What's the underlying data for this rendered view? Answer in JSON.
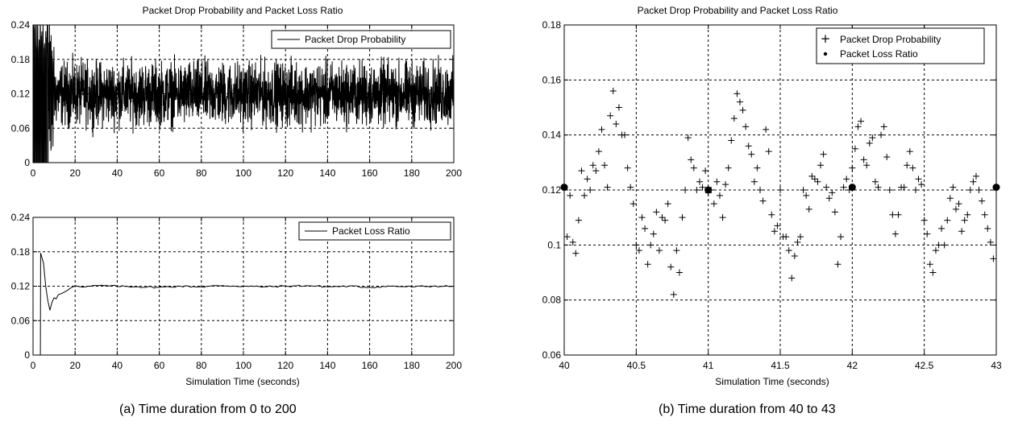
{
  "captions": {
    "a": "(a) Time duration from 0 to 200",
    "b": "(b) Time duration from 40 to 43"
  },
  "chart_data": [
    {
      "type": "line",
      "title": "Packet Drop Probability and Packet Loss Ratio",
      "xlabel": "",
      "ylabel": "",
      "xlim": [
        0,
        200
      ],
      "ylim": [
        0,
        0.24
      ],
      "grid": true,
      "xticks": [
        "0",
        "20",
        "40",
        "60",
        "80",
        "100",
        "120",
        "140",
        "160",
        "180",
        "200"
      ],
      "yticks": [
        "0",
        "0.06",
        "0.12",
        "0.18",
        "0.24"
      ],
      "legend_position": "top-right",
      "series": [
        {
          "name": "Packet Drop Probability",
          "description_values": {
            "initial_oscillation_range": [
              0,
              0.24
            ],
            "settled_mean": 0.12,
            "settled_range": [
              0.06,
              0.18
            ]
          }
        }
      ]
    },
    {
      "type": "line",
      "title": "",
      "xlabel": "Simulation Time (seconds)",
      "ylabel": "",
      "xlim": [
        0,
        200
      ],
      "ylim": [
        0,
        0.24
      ],
      "grid": true,
      "xticks": [
        "0",
        "20",
        "40",
        "60",
        "80",
        "100",
        "120",
        "140",
        "160",
        "180",
        "200"
      ],
      "yticks": [
        "0",
        "0.06",
        "0.12",
        "0.18",
        "0.24"
      ],
      "legend_position": "top-right",
      "series": [
        {
          "name": "Packet Loss Ratio",
          "x": [
            0,
            3.5,
            3.6,
            5,
            6,
            7,
            8,
            9,
            10,
            11,
            12,
            14,
            16,
            18,
            20,
            25,
            30,
            40,
            50,
            60,
            70,
            80,
            90,
            100,
            110,
            120,
            130,
            140,
            150,
            160,
            170,
            180,
            190,
            200
          ],
          "y": [
            0,
            0,
            0.178,
            0.16,
            0.12,
            0.095,
            0.078,
            0.092,
            0.1,
            0.098,
            0.105,
            0.108,
            0.112,
            0.117,
            0.121,
            0.119,
            0.121,
            0.12,
            0.119,
            0.118,
            0.12,
            0.119,
            0.121,
            0.12,
            0.119,
            0.12,
            0.121,
            0.119,
            0.12,
            0.118,
            0.12,
            0.119,
            0.12,
            0.12
          ]
        }
      ]
    },
    {
      "type": "scatter",
      "title": "Packet Drop Probability and Packet Loss Ratio",
      "xlabel": "Simulation Time (seconds)",
      "ylabel": "",
      "xlim": [
        40,
        43
      ],
      "ylim": [
        0.06,
        0.18
      ],
      "grid": true,
      "xticks": [
        "40",
        "40.5",
        "41",
        "41.5",
        "42",
        "42.5",
        "43"
      ],
      "yticks": [
        "0.06",
        "0.08",
        "0.1",
        "0.12",
        "0.14",
        "0.16",
        "0.18"
      ],
      "legend_position": "top-right",
      "series": [
        {
          "name": "Packet Drop Probability",
          "marker": "+",
          "x": [
            40.02,
            40.04,
            40.06,
            40.08,
            40.1,
            40.12,
            40.14,
            40.16,
            40.18,
            40.2,
            40.22,
            40.24,
            40.26,
            40.28,
            40.3,
            40.32,
            40.34,
            40.36,
            40.38,
            40.4,
            40.42,
            40.44,
            40.46,
            40.48,
            40.5,
            40.52,
            40.54,
            40.56,
            40.58,
            40.6,
            40.62,
            40.64,
            40.66,
            40.68,
            40.7,
            40.72,
            40.74,
            40.76,
            40.78,
            40.8,
            40.82,
            40.84,
            40.86,
            40.88,
            40.9,
            40.92,
            40.94,
            40.96,
            40.98,
            41.0,
            41.02,
            41.04,
            41.06,
            41.08,
            41.1,
            41.12,
            41.14,
            41.16,
            41.18,
            41.2,
            41.22,
            41.24,
            41.26,
            41.28,
            41.3,
            41.32,
            41.34,
            41.36,
            41.38,
            41.4,
            41.42,
            41.44,
            41.46,
            41.48,
            41.5,
            41.52,
            41.54,
            41.56,
            41.58,
            41.6,
            41.62,
            41.64,
            41.66,
            41.68,
            41.7,
            41.72,
            41.74,
            41.76,
            41.78,
            41.8,
            41.82,
            41.84,
            41.86,
            41.88,
            41.9,
            41.92,
            41.94,
            41.96,
            41.98,
            42.0,
            42.02,
            42.04,
            42.06,
            42.08,
            42.1,
            42.12,
            42.14,
            42.16,
            42.18,
            42.2,
            42.22,
            42.24,
            42.26,
            42.28,
            42.3,
            42.32,
            42.34,
            42.36,
            42.38,
            42.4,
            42.42,
            42.44,
            42.46,
            42.48,
            42.5,
            42.52,
            42.54,
            42.56,
            42.58,
            42.6,
            42.62,
            42.64,
            42.66,
            42.68,
            42.7,
            42.72,
            42.74,
            42.76,
            42.78,
            42.8,
            42.82,
            42.84,
            42.86,
            42.88,
            42.9,
            42.92,
            42.94,
            42.96,
            42.98
          ],
          "y": [
            0.103,
            0.118,
            0.101,
            0.097,
            0.109,
            0.127,
            0.118,
            0.124,
            0.12,
            0.129,
            0.127,
            0.134,
            0.142,
            0.129,
            0.121,
            0.147,
            0.156,
            0.144,
            0.15,
            0.14,
            0.14,
            0.128,
            0.121,
            0.115,
            0.1,
            0.098,
            0.11,
            0.106,
            0.093,
            0.1,
            0.104,
            0.112,
            0.098,
            0.11,
            0.109,
            0.115,
            0.092,
            0.082,
            0.098,
            0.09,
            0.11,
            0.12,
            0.139,
            0.131,
            0.128,
            0.12,
            0.123,
            0.121,
            0.127,
            0.119,
            0.12,
            0.115,
            0.123,
            0.118,
            0.11,
            0.122,
            0.128,
            0.138,
            0.146,
            0.155,
            0.152,
            0.149,
            0.143,
            0.136,
            0.133,
            0.123,
            0.128,
            0.12,
            0.116,
            0.142,
            0.134,
            0.111,
            0.105,
            0.107,
            0.12,
            0.103,
            0.103,
            0.098,
            0.088,
            0.096,
            0.101,
            0.103,
            0.12,
            0.118,
            0.113,
            0.125,
            0.124,
            0.123,
            0.129,
            0.133,
            0.121,
            0.117,
            0.119,
            0.112,
            0.093,
            0.103,
            0.121,
            0.124,
            0.12,
            0.128,
            0.135,
            0.143,
            0.145,
            0.131,
            0.129,
            0.137,
            0.139,
            0.123,
            0.121,
            0.14,
            0.143,
            0.132,
            0.12,
            0.111,
            0.104,
            0.111,
            0.121,
            0.121,
            0.129,
            0.134,
            0.128,
            0.12,
            0.124,
            0.122,
            0.109,
            0.104,
            0.093,
            0.09,
            0.098,
            0.1,
            0.106,
            0.1,
            0.109,
            0.117,
            0.121,
            0.113,
            0.115,
            0.105,
            0.109,
            0.111,
            0.12,
            0.123,
            0.125,
            0.12,
            0.116,
            0.111,
            0.106,
            0.101,
            0.095
          ]
        },
        {
          "name": "Packet Loss Ratio",
          "marker": "dot",
          "x": [
            40,
            41,
            42,
            43
          ],
          "y": [
            0.121,
            0.12,
            0.121,
            0.121
          ]
        }
      ]
    }
  ]
}
